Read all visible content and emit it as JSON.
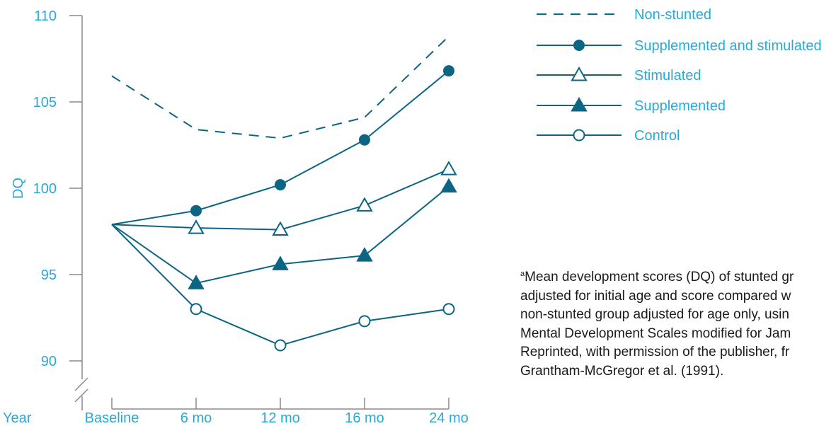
{
  "chart_data": {
    "type": "line",
    "ylabel": "DQ",
    "xlabel": "Year",
    "categories": [
      "Baseline",
      "6 mo",
      "12 mo",
      "16 mo",
      "24 mo"
    ],
    "yticks": [
      90,
      95,
      100,
      105,
      110
    ],
    "ylim": [
      88.5,
      110
    ],
    "axis_break": true,
    "grid": false,
    "legend_position": "top-right",
    "series": [
      {
        "name": "Non-stunted",
        "values": [
          106.5,
          103.4,
          102.9,
          104.1,
          108.8
        ],
        "marker": "none",
        "dash": true,
        "color": "#0c6582"
      },
      {
        "name": "Supplemented and stimulated",
        "values": [
          97.9,
          98.7,
          100.2,
          102.8,
          106.8
        ],
        "marker": "filled-circle",
        "dash": false,
        "color": "#0c6582"
      },
      {
        "name": "Stimulated",
        "values": [
          97.9,
          97.7,
          97.6,
          99.0,
          101.1
        ],
        "marker": "open-triangle",
        "dash": false,
        "color": "#0c6582"
      },
      {
        "name": "Supplemented",
        "values": [
          97.9,
          94.5,
          95.6,
          96.1,
          100.1
        ],
        "marker": "filled-triangle",
        "dash": false,
        "color": "#0c6582"
      },
      {
        "name": "Control",
        "values": [
          97.9,
          93.0,
          90.9,
          92.3,
          93.0
        ],
        "marker": "open-circle",
        "dash": false,
        "color": "#0c6582"
      }
    ]
  },
  "note": {
    "superscript": "a",
    "lines": [
      "Mean development scores (DQ) of stunted gr",
      "adjusted for initial age and score compared w",
      "non-stunted group adjusted for age only, usin",
      "Mental Development Scales modified for Jam",
      "Reprinted, with permission of the publisher, fr",
      "Grantham-McGregor et al. (1991)."
    ]
  },
  "colors": {
    "line": "#0c6582",
    "label": "#29a9d6",
    "axis": "#8a8a8a"
  }
}
